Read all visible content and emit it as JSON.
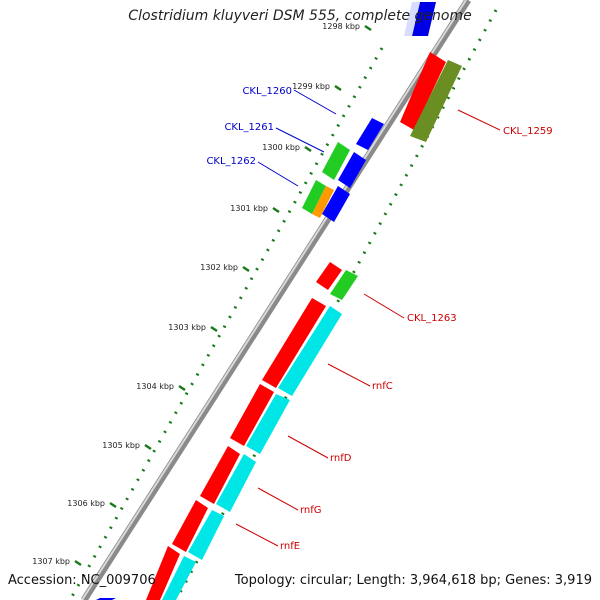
{
  "title": "Clostridium kluyveri DSM 555, complete genome",
  "accession": "Accession: NC_009706",
  "topology": "Topology: circular; Length: 3,964,618 bp; Genes: 3,919",
  "kbp_ticks": [
    "1298 kbp",
    "1299 kbp",
    "1300 kbp",
    "1301 kbp",
    "1302 kbp",
    "1303 kbp",
    "1304 kbp",
    "1305 kbp",
    "1306 kbp",
    "1307 kbp"
  ],
  "gene_labels": [
    "CKL_1260",
    "CKL_1261",
    "CKL_1262",
    "CKL_1259",
    "CKL_1263",
    "rnfC",
    "rnfD",
    "rnfG",
    "rnfE"
  ],
  "colors": {
    "forward_gene": "#ff0000",
    "reverse_gene": "#0000ff",
    "green_feature": "#22cc22",
    "olive_feature": "#6b8e23",
    "cyan_feature": "#00e6e6",
    "orange_feature": "#ff9900",
    "left_label": "#0000cc",
    "right_label": "#cc0000",
    "backbone": "#888888",
    "ticks": "#1a7a1a"
  }
}
